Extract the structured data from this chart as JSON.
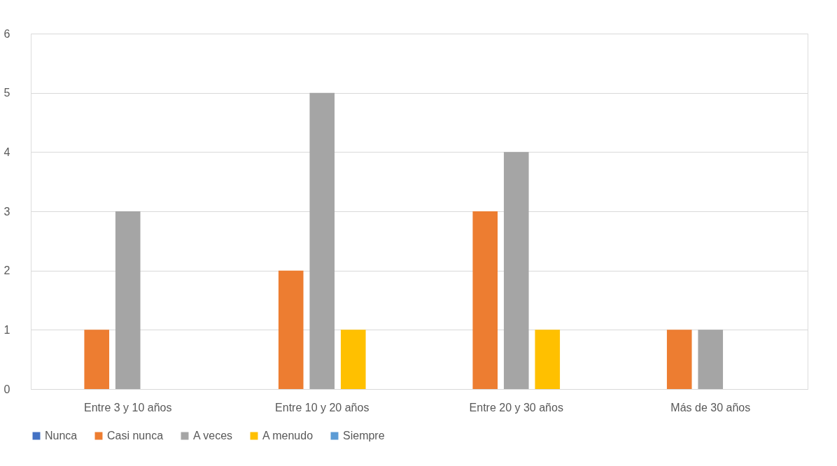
{
  "chart_data": {
    "type": "bar",
    "categories": [
      "Entre 3 y 10 años",
      "Entre 10 y 20 años",
      "Entre 20 y 30 años",
      "Más de 30 años"
    ],
    "series": [
      {
        "name": "Nunca",
        "color": "#4472c4",
        "values": [
          0,
          0,
          0,
          0
        ]
      },
      {
        "name": "Casi nunca",
        "color": "#ed7d31",
        "values": [
          1,
          2,
          3,
          1
        ]
      },
      {
        "name": "A veces",
        "color": "#a5a5a5",
        "values": [
          3,
          5,
          4,
          1
        ]
      },
      {
        "name": "A menudo",
        "color": "#ffc000",
        "values": [
          0,
          1,
          1,
          0
        ]
      },
      {
        "name": "Siempre",
        "color": "#5b9bd5",
        "values": [
          0,
          0,
          0,
          0
        ]
      }
    ],
    "ylim": [
      0,
      6
    ],
    "yticks": [
      0,
      1,
      2,
      3,
      4,
      5,
      6
    ],
    "grid": "y",
    "legend": "bottom"
  }
}
